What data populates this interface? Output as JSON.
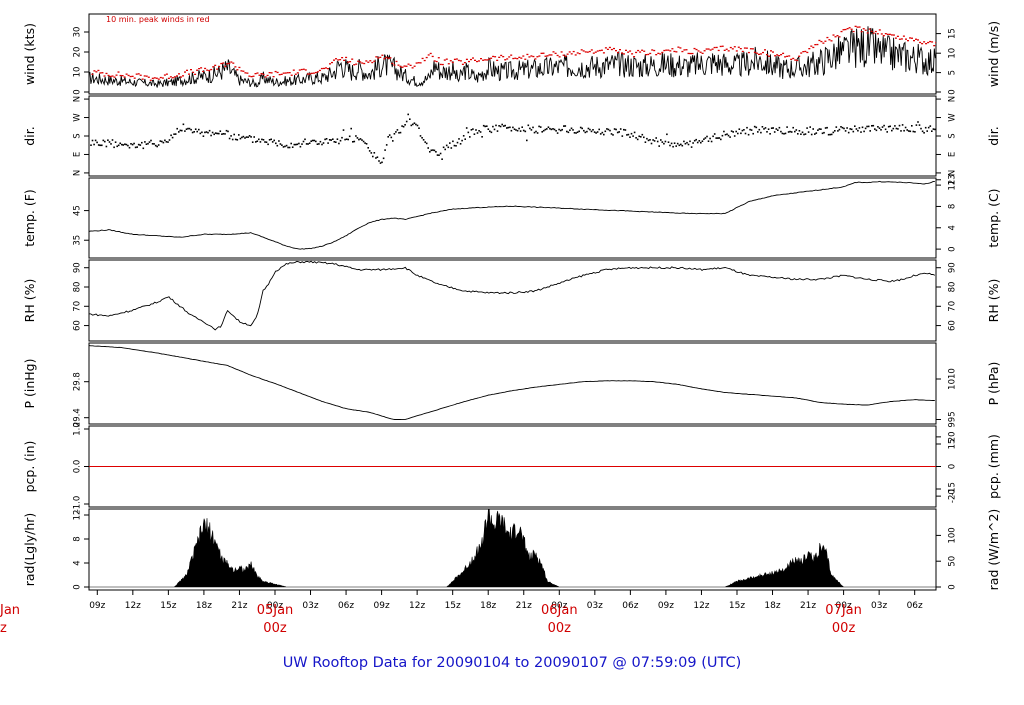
{
  "chart_data": {
    "type": "line",
    "title": "UW Rooftop Data for 20090104  to  20090107 @ 07:59:09  (UTC)",
    "wind_note": "10 min. peak winds in red",
    "colors": {
      "line": "#000000",
      "peak": "#dd0000",
      "zero": "#dd0000",
      "title": "#1515c8",
      "day": "#d00000"
    },
    "x_ticks": [
      "09z",
      "12z",
      "15z",
      "18z",
      "21z",
      "00z",
      "03z",
      "06z",
      "09z",
      "12z",
      "15z",
      "18z",
      "21z",
      "00z",
      "03z",
      "06z",
      "09z",
      "12z",
      "15z",
      "18z",
      "21z",
      "00z",
      "03z",
      "06z"
    ],
    "day_labels": [
      {
        "day": "05Jan",
        "hour": "00z",
        "at_hour": 15
      },
      {
        "day": "06Jan",
        "hour": "00z",
        "at_hour": 39
      },
      {
        "day": "07Jan",
        "hour": "00z",
        "at_hour": 63
      }
    ],
    "edge_day": {
      "day": "Jan",
      "hour": "z"
    },
    "x_units": "hours after 2009-01-04 09z",
    "x_range": [
      -0.7,
      70.8
    ],
    "panels": [
      {
        "key": "wind",
        "ylabel_left": "wind (kts)",
        "ylabel_right": "wind (m/s)",
        "ylim": [
          -1,
          39
        ],
        "left_ticks": [
          {
            "v": 0,
            "t": "0"
          },
          {
            "v": 10,
            "t": "10"
          },
          {
            "v": 20,
            "t": "20"
          },
          {
            "v": 30,
            "t": "30"
          }
        ],
        "right_ticks": [
          {
            "v": 0,
            "t": "0"
          },
          {
            "v": 9.7,
            "t": "5"
          },
          {
            "v": 19.4,
            "t": "10"
          },
          {
            "v": 29.2,
            "t": "15"
          }
        ],
        "series": [
          {
            "name": "wind",
            "hours": [
              -0.7,
              1,
              3,
              5,
              6.5,
              7,
              8,
              9,
              10,
              11,
              12,
              13.5,
              14,
              15,
              17,
              18,
              19,
              20,
              20.5,
              21.5,
              22,
              23,
              24,
              25,
              26,
              27,
              28,
              28.5,
              29,
              30,
              30.5,
              31,
              32,
              33,
              34,
              36,
              38,
              40,
              42,
              44,
              46,
              48,
              50,
              52,
              54,
              56,
              57,
              58,
              59,
              60,
              61,
              62,
              63,
              64,
              65,
              66,
              67,
              68,
              69,
              70,
              70.8
            ],
            "values": [
              7,
              6,
              5,
              4,
              5,
              6,
              7,
              8,
              9,
              12,
              6,
              4,
              7,
              5,
              6,
              7,
              7,
              10,
              14,
              10,
              12,
              9,
              14,
              12,
              8,
              5,
              7,
              14,
              10,
              11,
              6,
              11,
              7,
              12,
              10,
              11,
              12,
              13,
              13,
              14,
              13,
              14,
              13,
              15,
              13,
              16,
              13,
              12,
              12,
              13,
              15,
              18,
              20,
              22,
              23,
              20,
              19,
              18,
              17,
              16,
              15
            ]
          },
          {
            "name": "peak",
            "hours": [
              -0.7,
              1,
              3,
              5,
              7,
              9,
              10,
              11,
              13,
              15,
              17,
              19,
              20.5,
              22,
              24,
              26,
              28,
              29,
              31,
              33,
              35,
              37,
              39,
              41,
              43,
              45,
              47,
              49,
              51,
              53,
              55,
              57,
              59,
              60,
              61,
              62,
              63,
              64,
              65,
              66,
              67,
              68,
              69,
              70,
              70.8
            ],
            "values": [
              10,
              9,
              8,
              7,
              9,
              11,
              12,
              15,
              8,
              9,
              10,
              11,
              17,
              14,
              18,
              12,
              18,
              15,
              15,
              17,
              17,
              18,
              19,
              20,
              21,
              19,
              20,
              21,
              20,
              22,
              21,
              19,
              17,
              22,
              25,
              27,
              30,
              32,
              31,
              30,
              28,
              27,
              26,
              25,
              24
            ]
          }
        ]
      },
      {
        "key": "dir",
        "ylabel_left": "dir.",
        "ylabel_right": "dir.",
        "ylim": [
          -15,
          375
        ],
        "left_ticks": [
          {
            "v": 0,
            "t": "N"
          },
          {
            "v": 90,
            "t": "E"
          },
          {
            "v": 180,
            "t": "S"
          },
          {
            "v": 270,
            "t": "W"
          },
          {
            "v": 360,
            "t": "N"
          }
        ],
        "right_ticks": [
          {
            "v": 0,
            "t": "N"
          },
          {
            "v": 90,
            "t": "E"
          },
          {
            "v": 180,
            "t": "S"
          },
          {
            "v": 270,
            "t": "W"
          },
          {
            "v": 360,
            "t": "N"
          }
        ],
        "series": [
          {
            "name": "direction",
            "hours": [
              -0.7,
              2,
              4,
              6,
              7,
              8,
              9,
              10,
              12,
              14,
              15,
              16,
              18,
              20,
              22,
              23,
              24,
              24.5,
              25,
              26,
              27,
              28,
              29,
              30,
              32,
              34,
              36,
              38,
              40,
              42,
              44,
              46,
              48,
              50,
              52,
              54,
              56,
              58,
              60,
              62,
              64,
              66,
              68,
              70.8
            ],
            "values": [
              150,
              140,
              135,
              160,
              225,
              200,
              195,
              200,
              170,
              160,
              150,
              140,
              150,
              155,
              165,
              110,
              40,
              170,
              175,
              250,
              230,
              90,
              100,
              140,
              210,
              220,
              215,
              210,
              210,
              205,
              200,
              170,
              145,
              135,
              175,
              200,
              210,
              205,
              205,
              205,
              210,
              215,
              220,
              210
            ]
          }
        ]
      },
      {
        "key": "temp",
        "ylabel_left": "temp. (F)",
        "ylabel_right": "temp. (C)",
        "ylim": [
          29,
          56
        ],
        "left_ticks": [
          {
            "v": 35,
            "t": "35"
          },
          {
            "v": 45,
            "t": "45"
          }
        ],
        "right_ticks": [
          {
            "v": 32,
            "t": "0"
          },
          {
            "v": 39.2,
            "t": "4"
          },
          {
            "v": 46.4,
            "t": "8"
          },
          {
            "v": 53.6,
            "t": "12"
          },
          {
            "v": 55.4,
            "t": "13"
          }
        ],
        "series": [
          {
            "name": "temperature",
            "hours": [
              -0.7,
              1,
              3,
              5,
              7,
              9,
              11,
              13,
              14,
              15,
              16,
              17,
              18,
              19,
              20,
              21,
              22,
              23,
              24,
              25,
              26,
              27,
              28,
              30,
              32,
              35,
              38,
              41,
              44,
              47,
              50,
              53,
              54,
              55,
              57,
              59,
              61,
              63,
              64,
              65,
              66,
              68,
              70,
              70.8
            ],
            "values": [
              38,
              38.5,
              37,
              36.5,
              36,
              37,
              37,
              37.5,
              36,
              34.5,
              33,
              32,
              32.2,
              33,
              34.5,
              36.5,
              39,
              41,
              42,
              42.5,
              42,
              43,
              44,
              45.5,
              46,
              46.5,
              46,
              45.5,
              45,
              44.5,
              44,
              44,
              46,
              48,
              50,
              51,
              52,
              53,
              54.5,
              54.5,
              54.8,
              54.5,
              54,
              55
            ]
          }
        ]
      },
      {
        "key": "rh",
        "ylabel_left": "RH (%)",
        "ylabel_right": "RH (%)",
        "ylim": [
          52,
          94
        ],
        "left_ticks": [
          {
            "v": 60,
            "t": "60"
          },
          {
            "v": 70,
            "t": "70"
          },
          {
            "v": 80,
            "t": "80"
          },
          {
            "v": 90,
            "t": "90"
          }
        ],
        "right_ticks": [
          {
            "v": 60,
            "t": "60"
          },
          {
            "v": 70,
            "t": "70"
          },
          {
            "v": 80,
            "t": "80"
          },
          {
            "v": 90,
            "t": "90"
          }
        ],
        "series": [
          {
            "name": "rh",
            "hours": [
              -0.7,
              1,
              3,
              5,
              6,
              7,
              8,
              9,
              10,
              10.5,
              11,
              12,
              13,
              13.5,
              14,
              14.5,
              15,
              16,
              17,
              18,
              20,
              22,
              24,
              26,
              27,
              29,
              31,
              33,
              35,
              37,
              39,
              41,
              43,
              45,
              47,
              49,
              51,
              53,
              55,
              57,
              59,
              61,
              63,
              65,
              67,
              68,
              69,
              70,
              70.8
            ],
            "values": [
              66,
              65,
              68,
              72,
              75,
              70,
              65,
              62,
              58,
              60,
              68,
              62,
              60,
              65,
              78,
              82,
              88,
              92,
              93,
              93,
              92,
              89,
              89,
              90,
              86,
              81,
              78,
              77,
              77,
              78,
              82,
              86,
              89,
              90,
              90,
              90,
              89,
              90,
              86,
              85,
              84,
              84,
              86,
              84,
              83,
              84,
              86,
              87,
              86
            ]
          }
        ]
      },
      {
        "key": "pressure",
        "ylabel_left": "P (inHg)",
        "ylabel_right": "P (hPa)",
        "ylim": [
          29.33,
          30.23
        ],
        "left_ticks": [
          {
            "v": 29.4,
            "t": "29.4"
          },
          {
            "v": 29.8,
            "t": "29.8"
          }
        ],
        "right_ticks": [
          {
            "v": 29.38,
            "t": "995"
          },
          {
            "v": 29.83,
            "t": "1010"
          }
        ],
        "series": [
          {
            "name": "pressure",
            "hours": [
              -0.7,
              2,
              5,
              8,
              11,
              13,
              15,
              17,
              19,
              21,
              23,
              25,
              26,
              27,
              29,
              31,
              33,
              35,
              37,
              39,
              41,
              43,
              45,
              47,
              49,
              51,
              53,
              55,
              57,
              59,
              61,
              63,
              65,
              66,
              67,
              69,
              70.8
            ],
            "values": [
              30.2,
              30.18,
              30.12,
              30.05,
              29.98,
              29.87,
              29.78,
              29.68,
              29.58,
              29.5,
              29.46,
              29.38,
              29.38,
              29.42,
              29.5,
              29.58,
              29.65,
              29.7,
              29.74,
              29.77,
              29.8,
              29.81,
              29.81,
              29.8,
              29.77,
              29.72,
              29.68,
              29.66,
              29.64,
              29.62,
              29.57,
              29.55,
              29.54,
              29.56,
              29.58,
              29.6,
              29.59
            ]
          }
        ]
      },
      {
        "key": "precip",
        "ylabel_left": "pcp. (in)",
        "ylabel_right": "pcp. (mm)",
        "ylim": [
          -1.08,
          1.08
        ],
        "left_ticks": [
          {
            "v": -1,
            "t": "-1.0"
          },
          {
            "v": 0,
            "t": "0.0"
          },
          {
            "v": 1,
            "t": "1.0"
          }
        ],
        "right_ticks": [
          {
            "v": -0.79,
            "t": "-20"
          },
          {
            "v": -0.6,
            "t": "-15"
          },
          {
            "v": 0,
            "t": "0"
          },
          {
            "v": 0.6,
            "t": "15"
          },
          {
            "v": 0.79,
            "t": "20"
          }
        ],
        "series": [
          {
            "name": "precipitation",
            "hours": [
              -0.7,
              70.8
            ],
            "values": [
              0,
              0
            ]
          }
        ]
      },
      {
        "key": "rad",
        "ylabel_left": "rad(Lgly/hr)",
        "ylabel_right": "rad (W/m^2)",
        "ylim": [
          -0.5,
          13
        ],
        "left_ticks": [
          {
            "v": 0,
            "t": "0"
          },
          {
            "v": 4,
            "t": "4"
          },
          {
            "v": 8,
            "t": "8"
          },
          {
            "v": 12,
            "t": "12"
          }
        ],
        "right_ticks": [
          {
            "v": 0,
            "t": "0"
          },
          {
            "v": 4.3,
            "t": "50"
          },
          {
            "v": 8.6,
            "t": "100"
          }
        ],
        "series": [
          {
            "name": "radiation",
            "hours": [
              -0.7,
              6.5,
              7.5,
              8.5,
              9,
              9.5,
              10,
              10.5,
              11,
              11.5,
              12,
              12.5,
              13,
              13.5,
              14,
              15,
              16,
              17,
              29.5,
              30,
              31,
              32,
              32.5,
              33,
              33.5,
              34,
              34.5,
              35,
              35.5,
              36,
              36.5,
              37,
              37.5,
              38,
              39,
              40,
              53,
              54,
              55,
              56,
              57,
              58,
              58.5,
              59,
              59.5,
              60,
              60.5,
              61,
              61.5,
              62,
              63,
              70.8
            ],
            "values": [
              0,
              0,
              2,
              8,
              11,
              10,
              8,
              5,
              4,
              3,
              3.5,
              3,
              4,
              2,
              1,
              0.5,
              0,
              0,
              0,
              1,
              3,
              6,
              8,
              13,
              11,
              12,
              10,
              9,
              11,
              8,
              5,
              6,
              4,
              1,
              0,
              0,
              0,
              1,
              1.5,
              2,
              2.5,
              3,
              4,
              5,
              4.5,
              6,
              5,
              7,
              6,
              2,
              0,
              0
            ]
          }
        ]
      }
    ]
  }
}
